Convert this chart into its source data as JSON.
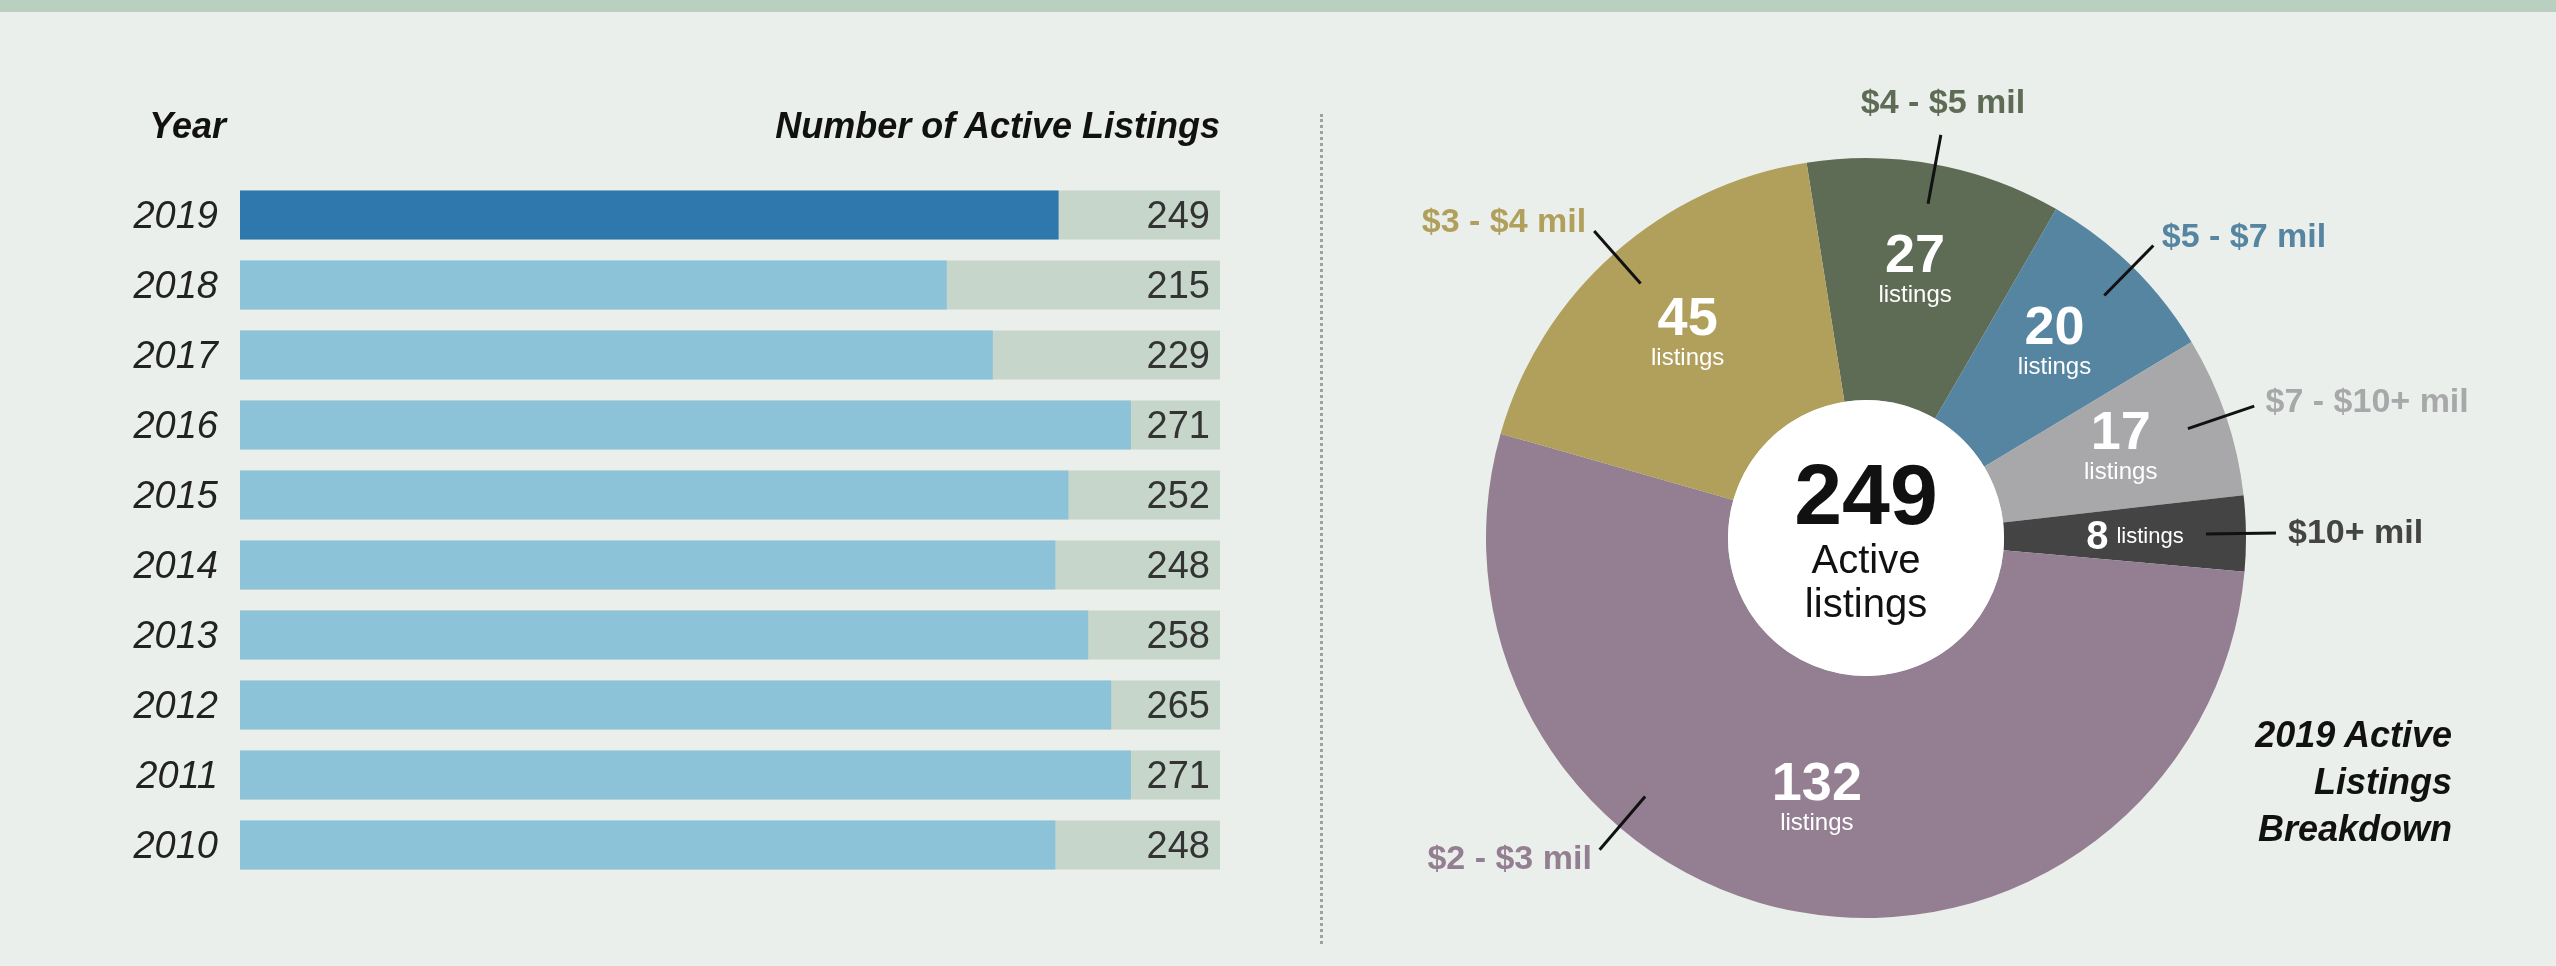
{
  "chart_data": [
    {
      "type": "bar",
      "orientation": "horizontal",
      "ylabel": "Year",
      "xlabel": "Number of Active Listings",
      "categories": [
        "2019",
        "2018",
        "2017",
        "2016",
        "2015",
        "2014",
        "2013",
        "2012",
        "2011",
        "2010"
      ],
      "values": [
        249,
        215,
        229,
        271,
        252,
        248,
        258,
        265,
        271,
        248
      ],
      "colors": [
        "#2f78ad",
        "#8dc3d8",
        "#8dc3d8",
        "#8dc3d8",
        "#8dc3d8",
        "#8dc3d8",
        "#8dc3d8",
        "#8dc3d8",
        "#8dc3d8",
        "#8dc3d8"
      ],
      "data_labels": true
    },
    {
      "type": "donut",
      "title": "2019 Active Listings Breakdown",
      "categories": [
        "$4 - $5 mil",
        "$5 - $7 mil",
        "$7 - $10+ mil",
        "$10+ mil",
        "$2 - $3 mil",
        "$3 - $4 mil"
      ],
      "values": [
        27,
        20,
        17,
        8,
        132,
        45
      ],
      "colors": [
        "#5e6b55",
        "#5585a0",
        "#a8a8aa",
        "#444444",
        "#937f91",
        "#b19f5c"
      ],
      "value_labels": [
        "27 listings",
        "20 listings",
        "17 listings",
        "8 listings",
        "132 listings",
        "45 listings"
      ],
      "annotations": [
        "249",
        "Active listings"
      ]
    }
  ]
}
